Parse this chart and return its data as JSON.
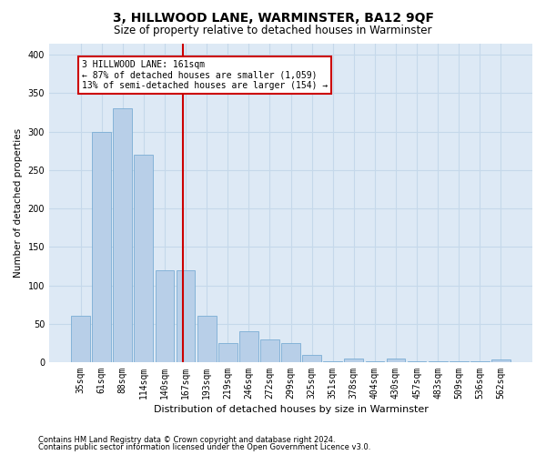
{
  "title": "3, HILLWOOD LANE, WARMINSTER, BA12 9QF",
  "subtitle": "Size of property relative to detached houses in Warminster",
  "xlabel": "Distribution of detached houses by size in Warminster",
  "ylabel": "Number of detached properties",
  "footnote1": "Contains HM Land Registry data © Crown copyright and database right 2024.",
  "footnote2": "Contains public sector information licensed under the Open Government Licence v3.0.",
  "annotation_line1": "3 HILLWOOD LANE: 161sqm",
  "annotation_line2": "← 87% of detached houses are smaller (1,059)",
  "annotation_line3": "13% of semi-detached houses are larger (154) →",
  "bar_color": "#b8cfe8",
  "bar_edge_color": "#7aadd4",
  "vline_color": "#cc0000",
  "annotation_box_edge": "#cc0000",
  "grid_color": "#c5d8ea",
  "bg_color": "#dde9f5",
  "categories": [
    "35sqm",
    "61sqm",
    "88sqm",
    "114sqm",
    "140sqm",
    "167sqm",
    "193sqm",
    "219sqm",
    "246sqm",
    "272sqm",
    "299sqm",
    "325sqm",
    "351sqm",
    "378sqm",
    "404sqm",
    "430sqm",
    "457sqm",
    "483sqm",
    "509sqm",
    "536sqm",
    "562sqm"
  ],
  "values": [
    60,
    300,
    330,
    270,
    120,
    120,
    60,
    25,
    40,
    30,
    25,
    10,
    1,
    5,
    1,
    5,
    1,
    1,
    1,
    1,
    3
  ],
  "vline_x": 4.85,
  "ylim": [
    0,
    415
  ],
  "yticks": [
    0,
    50,
    100,
    150,
    200,
    250,
    300,
    350,
    400
  ],
  "title_fontsize": 10,
  "subtitle_fontsize": 8.5,
  "xlabel_fontsize": 8,
  "ylabel_fontsize": 7.5,
  "tick_fontsize": 7,
  "annot_fontsize": 7,
  "footnote_fontsize": 6
}
